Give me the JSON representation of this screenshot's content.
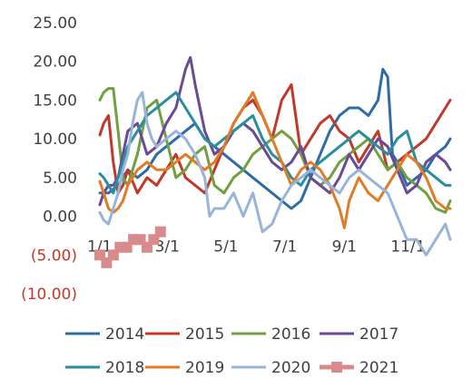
{
  "chart_data": {
    "type": "line",
    "title": "",
    "xlabel": "",
    "ylabel": "",
    "ylim": [
      -10,
      25
    ],
    "y_ticks": [
      25,
      20,
      15,
      10,
      5,
      0,
      -5,
      -10
    ],
    "y_tick_labels": [
      "25.00",
      "20.00",
      "15.00",
      "10.00",
      "5.00",
      "0.00",
      "(5.00)",
      "(10.00)"
    ],
    "negative_color": "#c0392b",
    "x_ticks": [
      1,
      60,
      121,
      182,
      244,
      305
    ],
    "x_tick_labels": [
      "1/1",
      "3/1",
      "5/1",
      "7/1",
      "9/1",
      "11/1"
    ],
    "x_range": [
      1,
      365
    ],
    "grid": false,
    "legend_position": "bottom",
    "series": [
      {
        "name": "2014",
        "color": "#2e6ca6",
        "x": [
          1,
          10,
          20,
          30,
          40,
          50,
          60,
          70,
          80,
          90,
          100,
          110,
          120,
          130,
          140,
          150,
          160,
          170,
          180,
          190,
          200,
          210,
          220,
          230,
          240,
          250,
          260,
          270,
          280,
          290,
          295,
          300,
          305,
          310,
          320,
          330,
          340,
          350,
          360,
          365
        ],
        "y": [
          3,
          3,
          4,
          6,
          5,
          6,
          8,
          9,
          10,
          11,
          12,
          10,
          9,
          8,
          7,
          6,
          5,
          4,
          3,
          2,
          1,
          2,
          5,
          8,
          11,
          13,
          14,
          14,
          13,
          15,
          19,
          18,
          8,
          7,
          4,
          5,
          6,
          8,
          9,
          10
        ]
      },
      {
        "name": "2015",
        "color": "#c0392b",
        "x": [
          1,
          5,
          10,
          15,
          20,
          25,
          30,
          40,
          50,
          60,
          70,
          80,
          90,
          100,
          110,
          120,
          130,
          140,
          150,
          160,
          170,
          180,
          190,
          200,
          210,
          220,
          230,
          240,
          250,
          260,
          270,
          280,
          290,
          300,
          310,
          320,
          330,
          340,
          350,
          360,
          365
        ],
        "y": [
          10.5,
          12,
          13,
          7,
          3,
          4,
          6,
          3,
          5,
          4,
          6,
          8,
          5,
          4,
          3,
          6,
          9,
          12,
          14,
          15,
          13,
          10,
          15,
          17,
          8,
          10,
          12,
          13,
          11,
          10,
          7,
          9,
          11,
          6,
          7,
          8,
          9,
          10,
          12,
          14,
          15
        ]
      },
      {
        "name": "2016",
        "color": "#70a040",
        "x": [
          1,
          5,
          10,
          15,
          20,
          25,
          30,
          40,
          50,
          60,
          70,
          80,
          90,
          100,
          110,
          120,
          130,
          140,
          150,
          160,
          170,
          180,
          190,
          200,
          210,
          220,
          230,
          240,
          250,
          260,
          270,
          280,
          290,
          300,
          310,
          320,
          330,
          340,
          350,
          360,
          365
        ],
        "y": [
          15,
          16,
          16.5,
          16.5,
          11,
          5,
          4,
          8,
          14,
          15,
          10,
          5,
          6,
          8,
          9,
          4,
          3,
          5,
          6,
          8,
          9,
          10,
          11,
          10,
          8,
          5,
          4,
          5,
          7,
          8,
          9,
          10,
          8,
          6,
          7,
          5,
          4,
          3,
          1,
          0.5,
          2
        ]
      },
      {
        "name": "2017",
        "color": "#6a4a96",
        "x": [
          1,
          5,
          10,
          15,
          20,
          25,
          30,
          40,
          50,
          60,
          70,
          80,
          90,
          95,
          100,
          110,
          120,
          130,
          140,
          150,
          160,
          170,
          180,
          190,
          200,
          210,
          220,
          230,
          240,
          250,
          260,
          270,
          280,
          290,
          300,
          310,
          320,
          330,
          340,
          350,
          360,
          365
        ],
        "y": [
          1.5,
          3,
          4,
          4,
          5,
          8,
          11,
          12,
          8,
          9,
          12,
          14,
          19,
          20.5,
          17,
          11,
          8,
          9,
          11,
          12,
          11,
          9,
          7,
          6,
          7,
          9,
          5,
          4,
          3,
          5,
          8,
          6,
          8,
          10,
          9,
          6,
          3,
          4,
          7,
          8,
          7,
          6
        ]
      },
      {
        "name": "2018",
        "color": "#2a8ea0",
        "x": [
          1,
          5,
          10,
          15,
          20,
          25,
          30,
          40,
          50,
          60,
          70,
          80,
          90,
          100,
          110,
          120,
          130,
          140,
          150,
          160,
          170,
          180,
          190,
          200,
          210,
          220,
          230,
          240,
          250,
          260,
          270,
          280,
          290,
          300,
          310,
          320,
          330,
          340,
          350,
          360,
          365
        ],
        "y": [
          5.5,
          5,
          4,
          3,
          5,
          7,
          9,
          11,
          13,
          14,
          15,
          16,
          14,
          12,
          10,
          9,
          10,
          11,
          12,
          13,
          10,
          8,
          7,
          5,
          4,
          6,
          7,
          8,
          9,
          10,
          11,
          10,
          9,
          8,
          10,
          11,
          7,
          6,
          5,
          4,
          4
        ]
      },
      {
        "name": "2019",
        "color": "#e07b28",
        "x": [
          1,
          5,
          10,
          15,
          20,
          25,
          30,
          40,
          50,
          60,
          70,
          80,
          90,
          100,
          110,
          120,
          130,
          140,
          150,
          160,
          170,
          180,
          190,
          200,
          210,
          220,
          230,
          240,
          250,
          255,
          260,
          270,
          280,
          290,
          300,
          310,
          320,
          330,
          340,
          350,
          360,
          365
        ],
        "y": [
          4.5,
          3,
          1,
          0.5,
          1,
          2,
          4,
          6,
          7,
          6,
          6,
          7,
          8,
          7,
          6,
          7,
          9,
          12,
          14,
          16,
          13,
          10,
          7,
          4,
          6,
          7,
          6,
          4,
          1,
          -1.5,
          2,
          5,
          3,
          2,
          4,
          6,
          8,
          7,
          5,
          2,
          1,
          1
        ]
      },
      {
        "name": "2020",
        "color": "#98b4d8",
        "x": [
          1,
          5,
          10,
          15,
          20,
          25,
          30,
          35,
          40,
          45,
          50,
          55,
          60,
          70,
          80,
          90,
          100,
          110,
          115,
          120,
          130,
          140,
          150,
          160,
          170,
          180,
          190,
          200,
          210,
          220,
          230,
          240,
          250,
          260,
          270,
          280,
          290,
          300,
          310,
          320,
          330,
          340,
          345,
          350,
          360,
          365
        ],
        "y": [
          0.5,
          -0.5,
          -1,
          1,
          3,
          6,
          8,
          12,
          15,
          16,
          12,
          10,
          9,
          10,
          11,
          10,
          8,
          5,
          0,
          1,
          1,
          3,
          0,
          3,
          -2,
          -1,
          2,
          4,
          5,
          6,
          5,
          4,
          3,
          5,
          6,
          5,
          4,
          3,
          0,
          -3,
          -3,
          -5,
          -4,
          -3,
          -1,
          -3
        ]
      },
      {
        "name": "2021",
        "color": "#d98b8b",
        "marker": "square",
        "x": [
          1,
          8,
          15,
          22,
          29,
          36,
          43,
          50,
          57,
          64
        ],
        "y": [
          -5,
          -6,
          -5,
          -4,
          -4,
          -3,
          -3,
          -4,
          -3,
          -2
        ]
      }
    ]
  }
}
